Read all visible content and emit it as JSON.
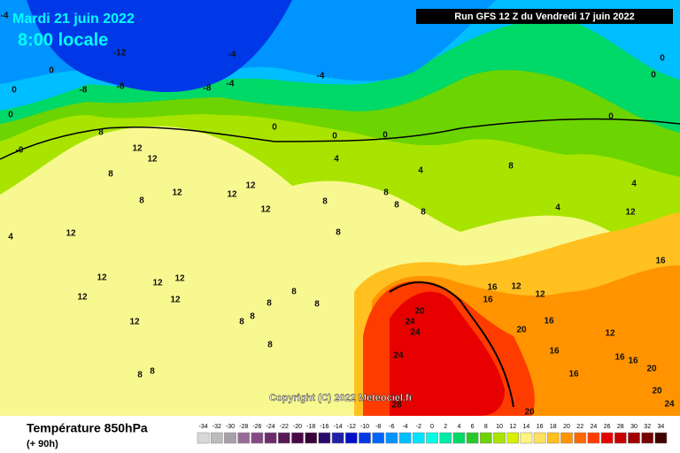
{
  "header": {
    "date": "Mardi 21 juin 2022",
    "time": "8:00 locale",
    "run": "Run GFS 12 Z du Vendredi 17 juin 2022"
  },
  "copyright": "Copyright (C) 2022 Meteociel.fr",
  "footer": {
    "title": "Température 850hPa",
    "lead": "(+ 90h)"
  },
  "legend": {
    "values": [
      -34,
      -32,
      -30,
      -28,
      -26,
      -24,
      -22,
      -20,
      -18,
      -16,
      -14,
      -12,
      -10,
      -8,
      -6,
      -4,
      -2,
      0,
      2,
      4,
      6,
      8,
      10,
      12,
      14,
      16,
      18,
      20,
      22,
      24,
      26,
      28,
      30,
      32,
      34
    ],
    "colors": [
      "#d8d8d8",
      "#bcbcbc",
      "#a8a0a8",
      "#9a6a9a",
      "#844a84",
      "#6c2c6c",
      "#581858",
      "#480848",
      "#380038",
      "#2a0a6a",
      "#2020a8",
      "#0010c8",
      "#0038e8",
      "#0064ff",
      "#0094ff",
      "#00beff",
      "#00e4ff",
      "#00ffe4",
      "#00eca4",
      "#00d868",
      "#28c828",
      "#6cd400",
      "#a8e400",
      "#d8f000",
      "#fff480",
      "#ffe060",
      "#ffc020",
      "#ff9400",
      "#ff6800",
      "#ff3c00",
      "#e80000",
      "#c80000",
      "#a00000",
      "#780000",
      "#400000"
    ]
  },
  "contour_labels": [
    "-4",
    "-4",
    "-12",
    "0",
    "0",
    "-8",
    "-8",
    "-8",
    "-4",
    "0",
    "-4",
    "0",
    "0",
    "0",
    "0",
    "0",
    "0",
    "-0",
    "8",
    "12",
    "12",
    "8",
    "4",
    "4",
    "8",
    "12",
    "12",
    "12",
    "12",
    "8",
    "8",
    "8",
    "8",
    "8",
    "8",
    "4",
    "4",
    "12",
    "4",
    "12",
    "12",
    "12",
    "12",
    "12",
    "12",
    "12",
    "8",
    "8",
    "8",
    "8",
    "8",
    "8",
    "8",
    "8",
    "16",
    "12",
    "12",
    "16",
    "20",
    "24",
    "24",
    "20",
    "16",
    "24",
    "16",
    "16",
    "16",
    "20",
    "20",
    "24",
    "20",
    "28",
    "16",
    "12",
    "16"
  ]
}
